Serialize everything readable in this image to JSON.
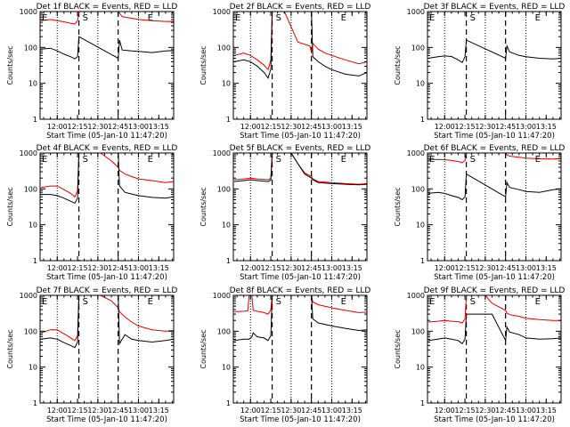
{
  "colors": {
    "events": "#000000",
    "lld": "#e00000",
    "axes": "#000000",
    "background": "#ffffff"
  },
  "panel_common": {
    "ylabel": "Counts/sec",
    "xlabel": "Start Time (05-Jan-10 11:47:20)",
    "yticks": [
      "1",
      "10",
      "100",
      "1000"
    ],
    "xticks": [
      "12:00",
      "12:15",
      "12:30",
      "12:45",
      "13:00",
      "13:15"
    ],
    "ylim": [
      1,
      1000
    ],
    "xlim": [
      "11:47:20",
      "13:26"
    ],
    "yscale": "log",
    "dotted_lines_at": [
      "12:00",
      "12:30",
      "13:00"
    ],
    "dashed_lines_at": [
      "12:16",
      "12:45"
    ]
  },
  "chart_data": [
    {
      "type": "line",
      "title": "Det 1f BLACK = Events, RED = LLD",
      "markers": [
        {
          "label": "E",
          "x": "11:48"
        },
        {
          "label": "S",
          "x": "12:18"
        },
        {
          "label": "E",
          "x": "13:06"
        }
      ],
      "x": [
        "11:48",
        "11:55",
        "12:00",
        "12:05",
        "12:10",
        "12:13",
        "12:15",
        "12:16",
        "12:45",
        "12:46",
        "12:48",
        "12:55",
        "13:00",
        "13:10",
        "13:20",
        "13:26"
      ],
      "series": [
        {
          "name": "Events",
          "values": [
            90,
            95,
            80,
            65,
            55,
            48,
            55,
            200,
            50,
            160,
            85,
            80,
            78,
            72,
            80,
            82
          ]
        },
        {
          "name": "LLD",
          "values": [
            560,
            600,
            560,
            520,
            470,
            450,
            560,
            1000,
            1000,
            900,
            720,
            650,
            600,
            560,
            530,
            530
          ]
        }
      ]
    },
    {
      "type": "line",
      "title": "Det 2f BLACK = Events, RED = LLD",
      "markers": [
        {
          "label": "E",
          "x": "11:48"
        },
        {
          "label": "S",
          "x": "12:18"
        },
        {
          "label": "E",
          "x": "13:06"
        }
      ],
      "x": [
        "11:48",
        "11:55",
        "12:00",
        "12:05",
        "12:10",
        "12:13",
        "12:15",
        "12:16",
        "12:22",
        "12:25",
        "12:35",
        "12:44",
        "12:45",
        "12:46",
        "12:50",
        "12:55",
        "13:00",
        "13:10",
        "13:20",
        "13:26"
      ],
      "series": [
        {
          "name": "Events",
          "values": [
            40,
            45,
            40,
            30,
            20,
            14,
            25,
            1000,
            1000,
            1000,
            1000,
            1000,
            1000,
            55,
            40,
            30,
            24,
            18,
            16,
            20
          ]
        },
        {
          "name": "LLD",
          "values": [
            60,
            70,
            60,
            45,
            32,
            24,
            45,
            1000,
            1000,
            1000,
            140,
            110,
            70,
            130,
            90,
            70,
            60,
            45,
            35,
            40
          ]
        }
      ]
    },
    {
      "type": "line",
      "title": "Det 3f BLACK = Events, RED = LLD",
      "markers": [
        {
          "label": "E",
          "x": "11:48"
        },
        {
          "label": "S",
          "x": "12:18"
        },
        {
          "label": "E",
          "x": "13:06"
        }
      ],
      "x": [
        "11:48",
        "11:55",
        "12:00",
        "12:05",
        "12:10",
        "12:13",
        "12:15",
        "12:16",
        "12:45",
        "12:46",
        "12:48",
        "12:55",
        "13:00",
        "13:10",
        "13:20",
        "13:26"
      ],
      "series": [
        {
          "name": "Events",
          "values": [
            50,
            55,
            58,
            56,
            45,
            38,
            55,
            160,
            50,
            110,
            75,
            60,
            55,
            50,
            48,
            50
          ]
        }
      ]
    },
    {
      "type": "line",
      "title": "Det 4f BLACK = Events, RED = LLD",
      "markers": [
        {
          "label": "E",
          "x": "11:48"
        },
        {
          "label": "S",
          "x": "12:18"
        },
        {
          "label": "E",
          "x": "13:06"
        }
      ],
      "x": [
        "11:48",
        "11:55",
        "12:00",
        "12:05",
        "12:10",
        "12:13",
        "12:15",
        "12:16",
        "12:32",
        "12:40",
        "12:45",
        "12:46",
        "12:50",
        "12:55",
        "13:00",
        "13:10",
        "13:20",
        "13:26"
      ],
      "series": [
        {
          "name": "Events",
          "values": [
            70,
            70,
            65,
            55,
            45,
            40,
            55,
            1000,
            1000,
            1000,
            1000,
            120,
            80,
            72,
            65,
            58,
            55,
            60
          ]
        },
        {
          "name": "LLD",
          "values": [
            110,
            120,
            120,
            95,
            75,
            60,
            90,
            1000,
            1000,
            600,
            400,
            330,
            260,
            220,
            190,
            170,
            150,
            160
          ]
        }
      ]
    },
    {
      "type": "line",
      "title": "Det 5f BLACK = Events, RED = LLD",
      "markers": [
        {
          "label": "S",
          "x": "12:18"
        },
        {
          "label": "E",
          "x": "13:06"
        }
      ],
      "x": [
        "11:48",
        "11:55",
        "12:00",
        "12:05",
        "12:10",
        "12:13",
        "12:15",
        "12:16",
        "12:30",
        "12:35",
        "12:40",
        "12:45",
        "12:46",
        "12:50",
        "13:00",
        "13:10",
        "13:20",
        "13:26"
      ],
      "series": [
        {
          "name": "Events",
          "values": [
            160,
            170,
            180,
            170,
            165,
            160,
            175,
            1000,
            1000,
            500,
            260,
            200,
            180,
            150,
            140,
            135,
            130,
            135
          ]
        },
        {
          "name": "LLD",
          "values": [
            180,
            190,
            200,
            190,
            185,
            180,
            195,
            1000,
            1000,
            500,
            280,
            220,
            190,
            160,
            150,
            140,
            135,
            140
          ]
        }
      ]
    },
    {
      "type": "line",
      "title": "Det 6f BLACK = Events, RED = LLD",
      "markers": [
        {
          "label": "E",
          "x": "11:48"
        },
        {
          "label": "S",
          "x": "12:18"
        },
        {
          "label": "E",
          "x": "13:06"
        }
      ],
      "x": [
        "11:48",
        "11:55",
        "12:00",
        "12:05",
        "12:10",
        "12:13",
        "12:15",
        "12:16",
        "12:45",
        "12:46",
        "12:48",
        "12:55",
        "13:00",
        "13:10",
        "13:20",
        "13:26"
      ],
      "series": [
        {
          "name": "Events",
          "values": [
            75,
            80,
            75,
            65,
            58,
            50,
            60,
            260,
            60,
            150,
            110,
            95,
            85,
            80,
            95,
            100
          ]
        },
        {
          "name": "LLD",
          "values": [
            650,
            660,
            650,
            620,
            580,
            540,
            620,
            1000,
            1000,
            900,
            820,
            760,
            720,
            690,
            680,
            700
          ]
        }
      ]
    },
    {
      "type": "line",
      "title": "Det 7f BLACK = Events, RED = LLD",
      "markers": [
        {
          "label": "E",
          "x": "11:48"
        },
        {
          "label": "S",
          "x": "12:18"
        },
        {
          "label": "E",
          "x": "13:06"
        }
      ],
      "x": [
        "11:48",
        "11:55",
        "12:00",
        "12:05",
        "12:10",
        "12:13",
        "12:15",
        "12:16",
        "12:32",
        "12:40",
        "12:45",
        "12:46",
        "12:50",
        "12:55",
        "13:00",
        "13:10",
        "13:20",
        "13:26"
      ],
      "series": [
        {
          "name": "Events",
          "values": [
            60,
            65,
            60,
            48,
            40,
            35,
            50,
            1000,
            1000,
            1000,
            1000,
            45,
            80,
            60,
            55,
            50,
            55,
            60
          ]
        },
        {
          "name": "LLD",
          "values": [
            90,
            110,
            110,
            85,
            65,
            55,
            75,
            1000,
            1000,
            700,
            450,
            350,
            250,
            180,
            140,
            110,
            100,
            105
          ]
        }
      ]
    },
    {
      "type": "line",
      "title": "Det 8f BLACK = Events, RED = LLD",
      "markers": [
        {
          "label": "S",
          "x": "12:18"
        },
        {
          "label": "E",
          "x": "13:06"
        }
      ],
      "x": [
        "11:48",
        "11:55",
        "11:58",
        "11:59",
        "12:01",
        "12:02",
        "12:05",
        "12:10",
        "12:13",
        "12:15",
        "12:16",
        "12:30",
        "12:45",
        "12:46",
        "12:50",
        "13:00",
        "13:10",
        "13:20",
        "13:26"
      ],
      "series": [
        {
          "name": "Events",
          "values": [
            55,
            60,
            60,
            60,
            70,
            90,
            70,
            65,
            55,
            75,
            1000,
            1000,
            1000,
            220,
            170,
            140,
            120,
            105,
            110
          ]
        },
        {
          "name": "LLD",
          "values": [
            350,
            360,
            370,
            1000,
            1000,
            380,
            360,
            330,
            300,
            400,
            1000,
            1000,
            1000,
            650,
            550,
            450,
            380,
            330,
            340
          ]
        }
      ]
    },
    {
      "type": "line",
      "title": "Det 9f BLACK = Events, RED = LLD",
      "markers": [
        {
          "label": "E",
          "x": "11:48"
        },
        {
          "label": "S",
          "x": "12:18"
        },
        {
          "label": "E",
          "x": "13:06"
        }
      ],
      "x": [
        "11:48",
        "11:55",
        "12:00",
        "12:05",
        "12:10",
        "12:13",
        "12:15",
        "12:16",
        "12:30",
        "12:35",
        "12:45",
        "12:46",
        "12:48",
        "12:55",
        "13:00",
        "13:10",
        "13:20",
        "13:26"
      ],
      "series": [
        {
          "name": "Events",
          "values": [
            55,
            60,
            65,
            60,
            55,
            45,
            60,
            300,
            300,
            300,
            55,
            130,
            95,
            80,
            65,
            60,
            62,
            65
          ]
        },
        {
          "name": "LLD",
          "values": [
            180,
            190,
            200,
            190,
            185,
            170,
            220,
            1000,
            1000,
            600,
            380,
            320,
            290,
            260,
            230,
            210,
            200,
            200
          ]
        }
      ]
    }
  ]
}
